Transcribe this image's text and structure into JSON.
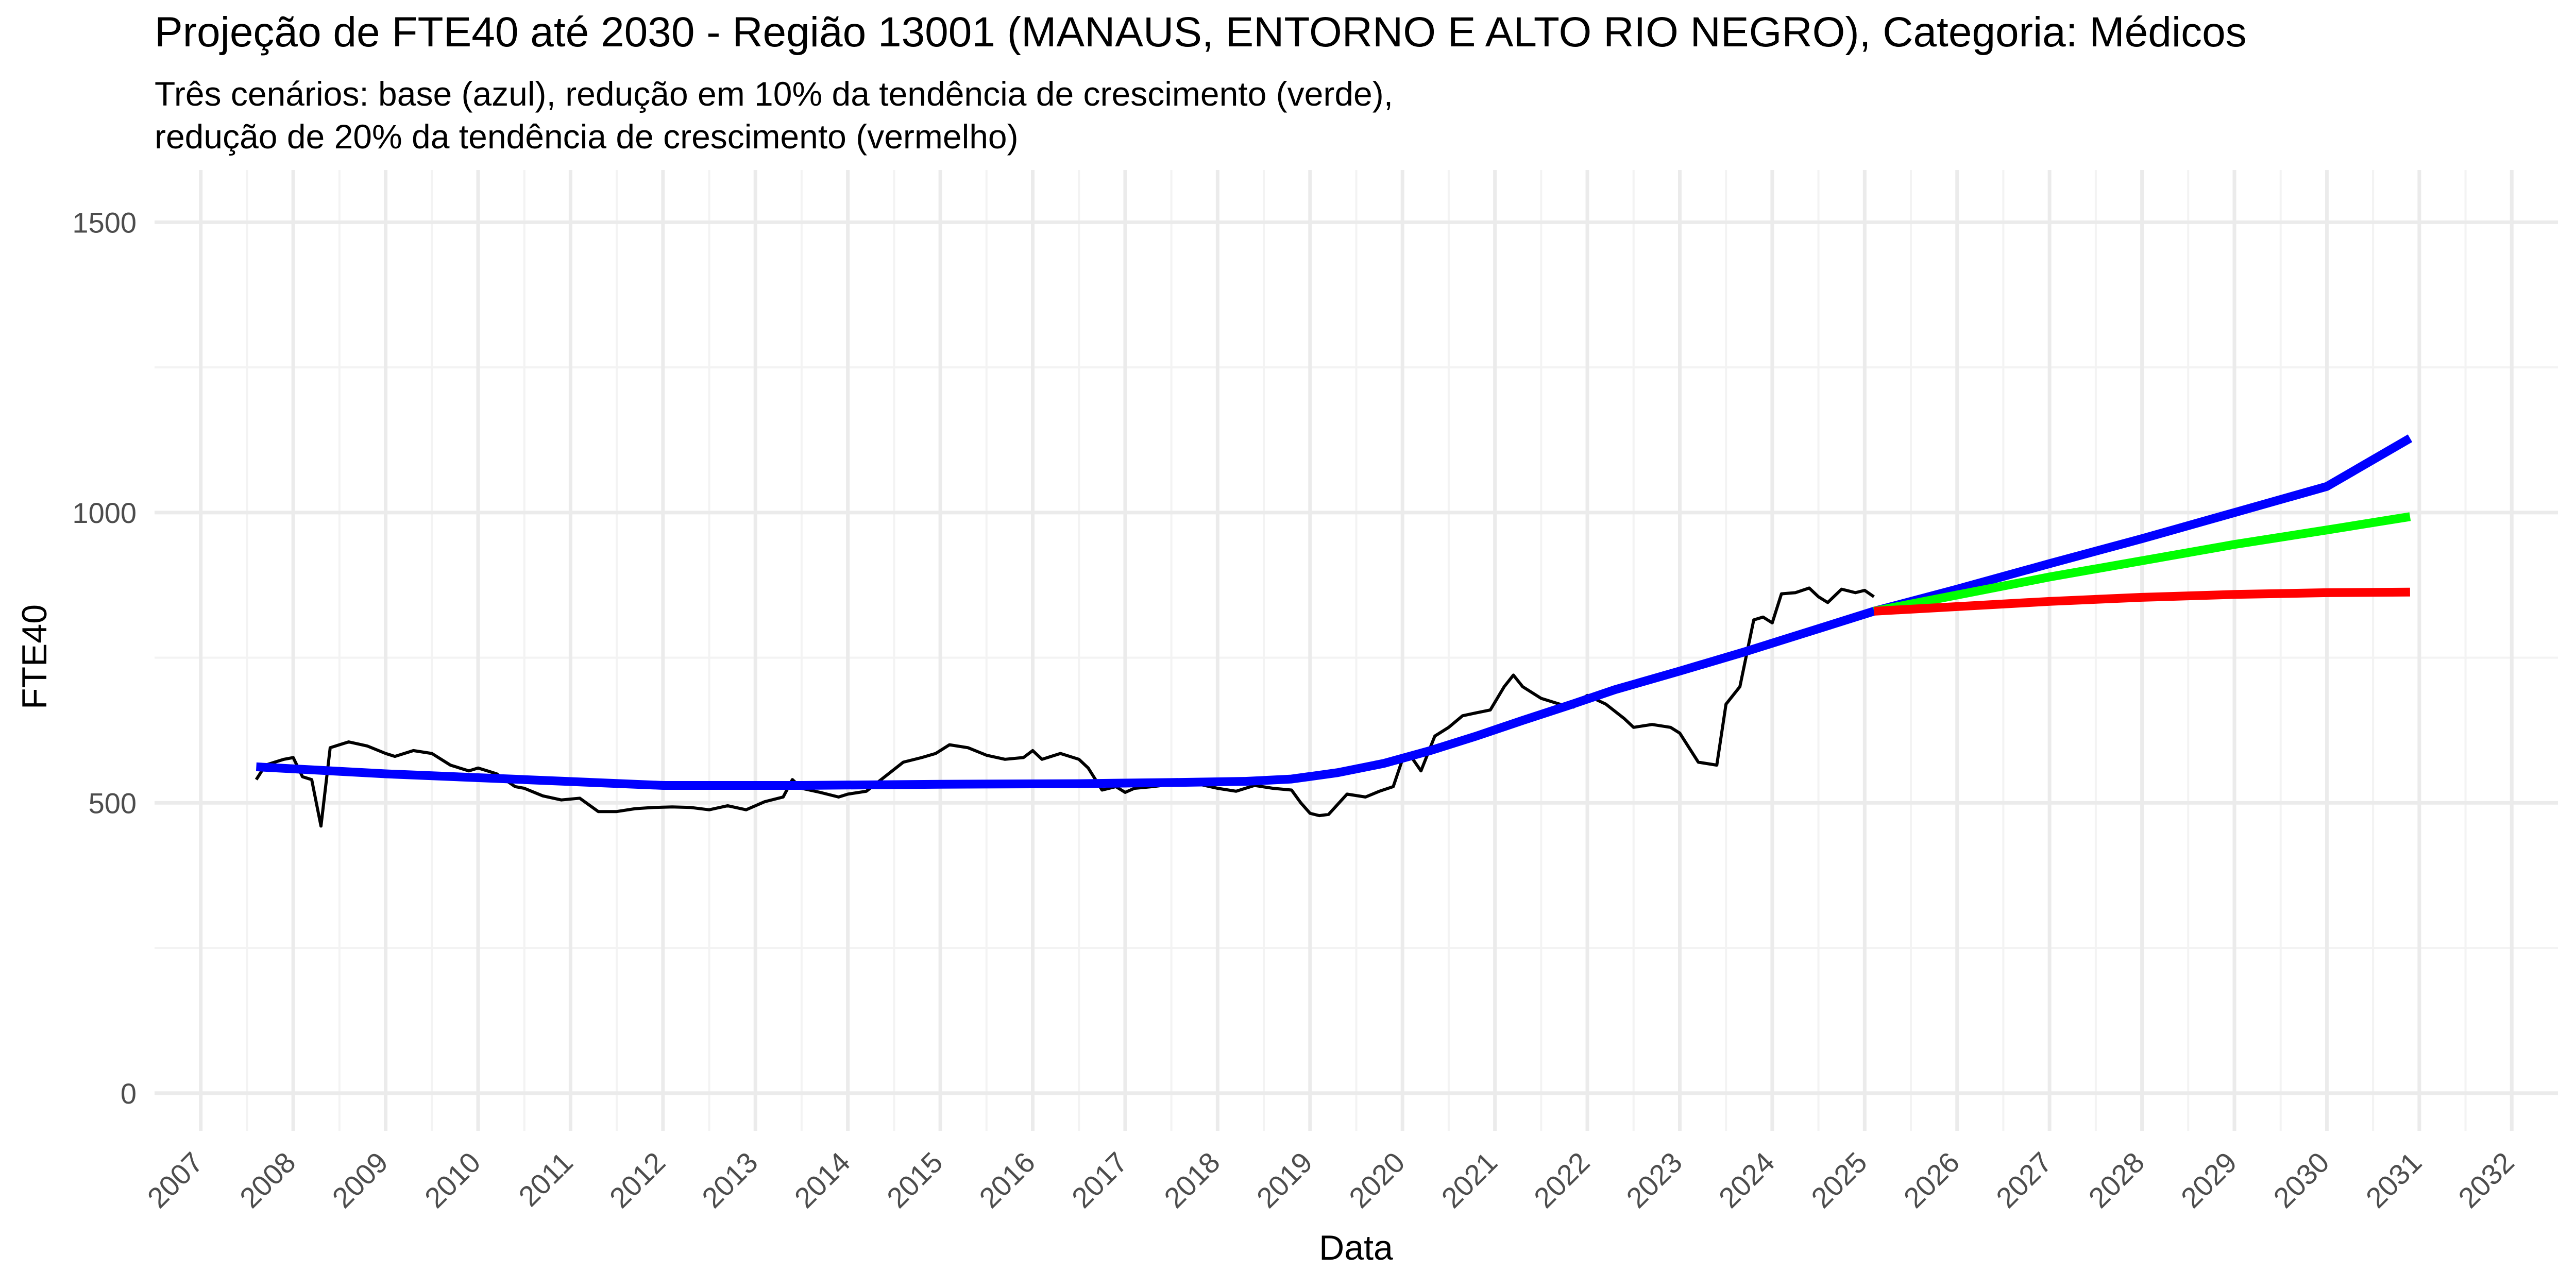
{
  "chart_data": {
    "type": "line",
    "title": "Projeção de FTE40 até 2030 - Região 13001 (MANAUS, ENTORNO E ALTO RIO NEGRO), Categoria: Médicos",
    "subtitle_lines": [
      "Três cenários: base (azul), redução em 10% da tendência de crescimento (verde),",
      " redução de 20% da tendência de crescimento (vermelho)"
    ],
    "xlabel": "Data",
    "ylabel": "FTE40",
    "xlim": [
      2006.5,
      2032.5
    ],
    "ylim": [
      -65,
      1590
    ],
    "x_ticks": [
      2007,
      2008,
      2009,
      2010,
      2011,
      2012,
      2013,
      2014,
      2015,
      2016,
      2017,
      2018,
      2019,
      2020,
      2021,
      2022,
      2023,
      2024,
      2025,
      2026,
      2027,
      2028,
      2029,
      2030,
      2031,
      2032
    ],
    "x_tick_labels": [
      "2007",
      "2008",
      "2009",
      "2010",
      "2011",
      "2012",
      "2013",
      "2014",
      "2015",
      "2016",
      "2017",
      "2018",
      "2019",
      "2020",
      "2021",
      "2022",
      "2023",
      "2024",
      "2025",
      "2026",
      "2027",
      "2028",
      "2029",
      "2030",
      "2031",
      "2032"
    ],
    "y_ticks": [
      0,
      500,
      1000,
      1500
    ],
    "y_tick_labels": [
      "0",
      "500",
      "1000",
      "1500"
    ],
    "grid": true,
    "legend": "none",
    "colors": {
      "observed": "#000000",
      "base": "#0000ff",
      "reduction_10": "#00ff00",
      "reduction_20": "#ff0000",
      "grid_major": "#ebebeb",
      "grid_minor": "#f3f3f3"
    },
    "series": [
      {
        "key": "observed",
        "x": [
          2007.6,
          2007.7,
          2007.8,
          2007.9,
          2008.0,
          2008.1,
          2008.2,
          2008.3,
          2008.4,
          2008.5,
          2008.6,
          2008.8,
          2009.0,
          2009.1,
          2009.3,
          2009.5,
          2009.7,
          2009.8,
          2009.9,
          2010.0,
          2010.1,
          2010.2,
          2010.4,
          2010.5,
          2010.7,
          2010.9,
          2011.1,
          2011.3,
          2011.5,
          2011.7,
          2011.9,
          2012.1,
          2012.3,
          2012.5,
          2012.7,
          2012.9,
          2013.1,
          2013.3,
          2013.4,
          2013.5,
          2013.7,
          2013.9,
          2014.0,
          2014.2,
          2014.4,
          2014.6,
          2014.8,
          2014.95,
          2015.1,
          2015.3,
          2015.5,
          2015.7,
          2015.9,
          2016.0,
          2016.1,
          2016.3,
          2016.5,
          2016.6,
          2016.75,
          2016.9,
          2017.0,
          2017.1,
          2017.3,
          2017.4,
          2017.6,
          2017.8,
          2018.0,
          2018.2,
          2018.4,
          2018.6,
          2018.8,
          2018.9,
          2019.0,
          2019.1,
          2019.2,
          2019.4,
          2019.6,
          2019.75,
          2019.9,
          2020.0,
          2020.1,
          2020.2,
          2020.35,
          2020.5,
          2020.65,
          2020.8,
          2020.95,
          2021.1,
          2021.2,
          2021.3,
          2021.5,
          2021.7,
          2021.85,
          2021.95,
          2022.0,
          2022.2,
          2022.4,
          2022.5,
          2022.7,
          2022.9,
          2023.0,
          2023.2,
          2023.4,
          2023.5,
          2023.65,
          2023.8,
          2023.9,
          2024.0,
          2024.1,
          2024.25,
          2024.4,
          2024.5,
          2024.6,
          2024.75,
          2024.9,
          2025.0,
          2025.1
        ],
        "y": [
          540,
          565,
          570,
          575,
          578,
          545,
          540,
          460,
          595,
          600,
          605,
          598,
          585,
          580,
          590,
          585,
          565,
          560,
          555,
          560,
          555,
          550,
          528,
          525,
          512,
          505,
          508,
          485,
          485,
          490,
          492,
          493,
          492,
          488,
          495,
          488,
          502,
          510,
          540,
          525,
          518,
          510,
          515,
          520,
          545,
          570,
          578,
          585,
          600,
          595,
          582,
          575,
          578,
          590,
          575,
          585,
          575,
          560,
          522,
          528,
          518,
          525,
          528,
          530,
          535,
          532,
          525,
          520,
          530,
          525,
          522,
          500,
          482,
          478,
          480,
          515,
          510,
          520,
          528,
          575,
          578,
          555,
          615,
          630,
          650,
          655,
          660,
          700,
          720,
          700,
          680,
          670,
          665,
          680,
          685,
          670,
          645,
          630,
          635,
          630,
          620,
          570,
          565,
          670,
          700,
          815,
          820,
          810,
          860,
          862,
          870,
          855,
          845,
          868,
          862,
          866,
          855
        ]
      },
      {
        "key": "base",
        "x": [
          2007.6,
          2009.0,
          2010.5,
          2012.0,
          2013.5,
          2015.0,
          2016.5,
          2017.5,
          2018.3,
          2018.8,
          2019.3,
          2019.8,
          2020.3,
          2020.8,
          2021.3,
          2021.8,
          2022.3,
          2023.0,
          2023.7,
          2024.4,
          2025.1,
          2026.0,
          2027.0,
          2028.0,
          2029.0,
          2030.0,
          2030.9
        ],
        "y": [
          562,
          550,
          540,
          530,
          530,
          532,
          533,
          535,
          537,
          541,
          552,
          568,
          590,
          615,
          642,
          668,
          695,
          727,
          760,
          795,
          830,
          868,
          912,
          955,
          1000,
          1045,
          1128
        ]
      },
      {
        "key": "reduction_10",
        "x": [
          2025.1,
          2026.0,
          2027.0,
          2028.0,
          2029.0,
          2030.0,
          2030.9
        ],
        "y": [
          830,
          858,
          889,
          917,
          945,
          970,
          993
        ]
      },
      {
        "key": "reduction_20",
        "x": [
          2025.1,
          2026.0,
          2027.0,
          2028.0,
          2029.0,
          2030.0,
          2030.9
        ],
        "y": [
          830,
          838,
          847,
          854,
          859,
          862,
          863
        ]
      }
    ]
  }
}
